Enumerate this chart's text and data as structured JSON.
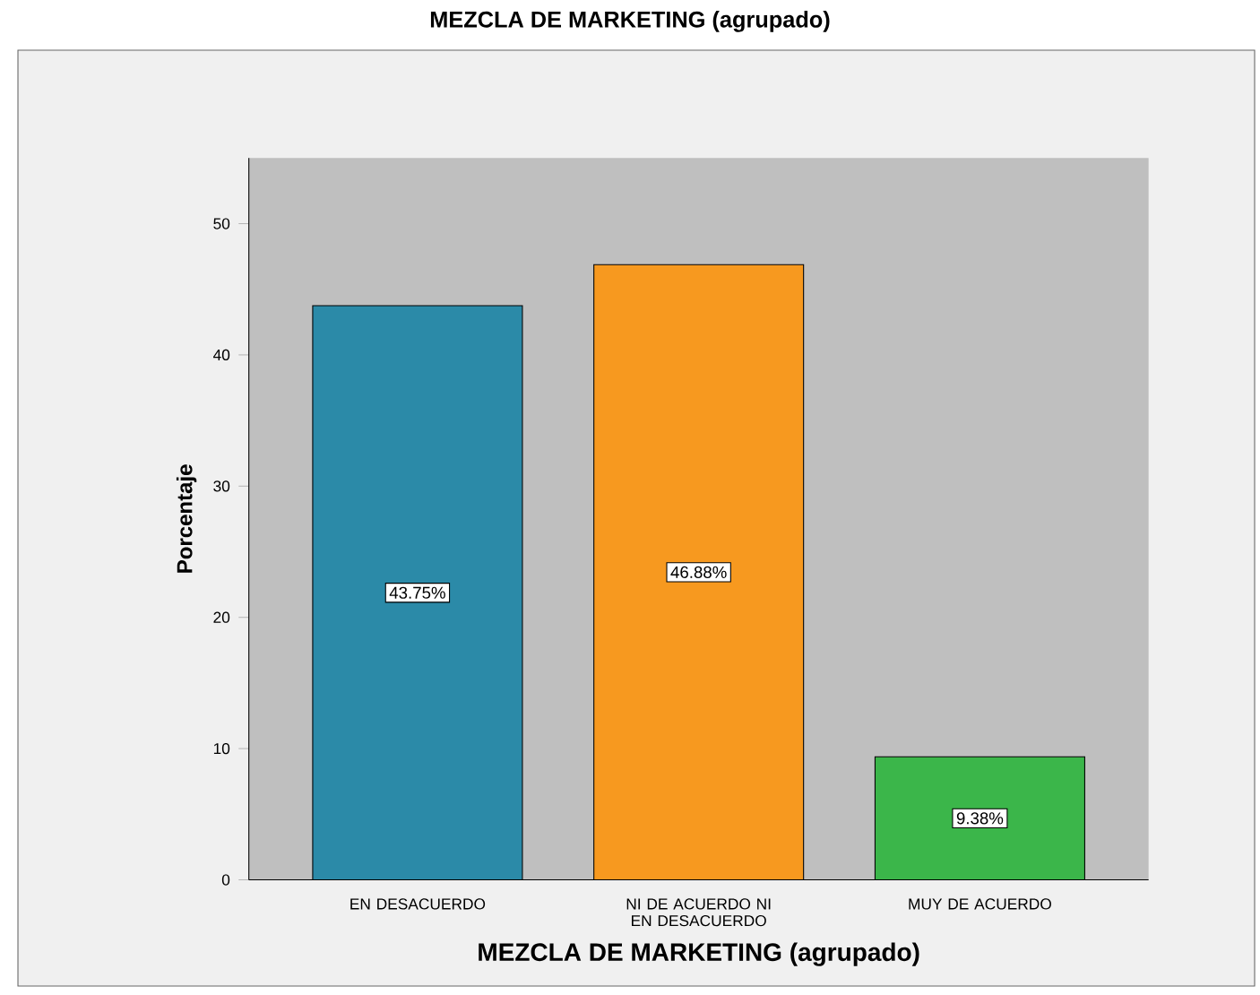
{
  "chart_data": {
    "type": "bar",
    "title": "MEZCLA DE MARKETING (agrupado)",
    "xlabel": "MEZCLA DE MARKETING (agrupado)",
    "ylabel": "Porcentaje",
    "categories": [
      "EN DESACUERDO",
      "NI DE ACUERDO NI EN DESACUERDO",
      "MUY DE ACUERDO"
    ],
    "values": [
      43.75,
      46.88,
      9.38
    ],
    "value_labels": [
      "43.75%",
      "46.88%",
      "9.38%"
    ],
    "colors": [
      "#2b8aa8",
      "#f7991f",
      "#3bb64a"
    ],
    "ylim": [
      0,
      55
    ],
    "yticks": [
      0,
      10,
      20,
      30,
      40,
      50
    ]
  }
}
